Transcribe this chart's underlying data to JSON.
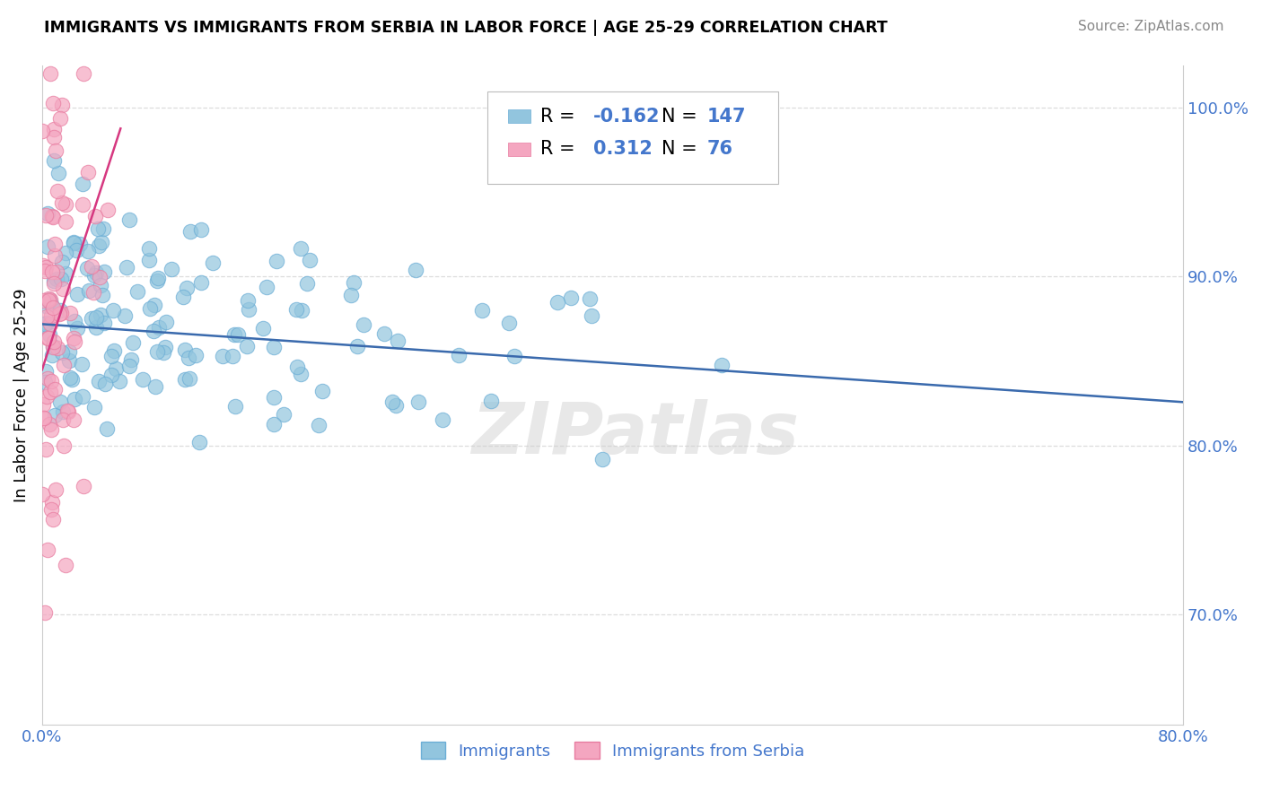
{
  "title": "IMMIGRANTS VS IMMIGRANTS FROM SERBIA IN LABOR FORCE | AGE 25-29 CORRELATION CHART",
  "source": "Source: ZipAtlas.com",
  "ylabel": "In Labor Force | Age 25-29",
  "xlim": [
    0.0,
    0.8
  ],
  "ylim": [
    0.635,
    1.025
  ],
  "xticks": [
    0.0,
    0.2,
    0.4,
    0.6,
    0.8
  ],
  "xticklabels": [
    "0.0%",
    "",
    "",
    "",
    "80.0%"
  ],
  "yticks": [
    0.7,
    0.8,
    0.9,
    1.0
  ],
  "yticklabels": [
    "70.0%",
    "80.0%",
    "90.0%",
    "100.0%"
  ],
  "blue_color": "#92c5de",
  "pink_color": "#f4a6c0",
  "blue_edge_color": "#6baed6",
  "pink_edge_color": "#e87ca0",
  "blue_line_color": "#3a6aad",
  "pink_line_color": "#d63880",
  "legend_R1": "-0.162",
  "legend_N1": "147",
  "legend_R2": "0.312",
  "legend_N2": "76",
  "legend_label1": "Immigrants",
  "legend_label2": "Immigrants from Serbia",
  "watermark": "ZIPatlas",
  "tick_color": "#4477cc",
  "grid_color": "#dddddd",
  "blue_R": -0.162,
  "blue_N": 147,
  "pink_R": 0.312,
  "pink_N": 76,
  "seed_blue": 42,
  "seed_pink": 7
}
